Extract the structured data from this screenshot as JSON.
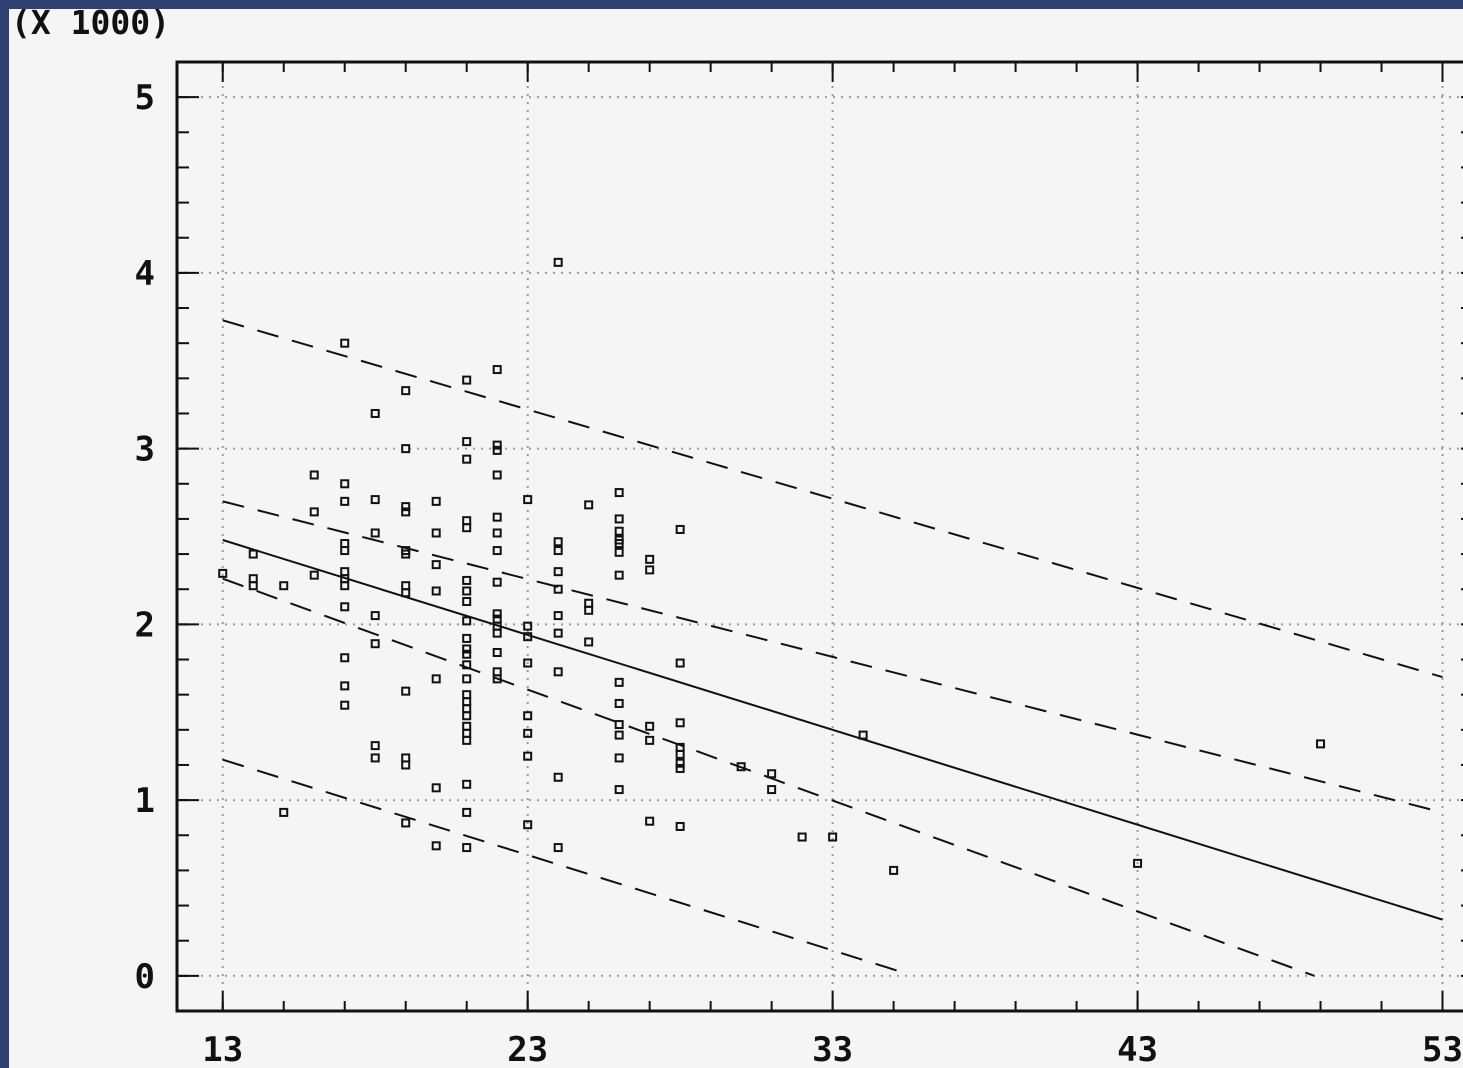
{
  "colors": {
    "background_frame": "#2e3f72",
    "plot_background": "#f5f5f5",
    "ink": "#111111",
    "grid": "#9a9a9a"
  },
  "chart_data": {
    "type": "scatter",
    "title": "",
    "xlabel": "",
    "ylabel": "",
    "y_multiplier_label": "(X 1000)",
    "xlim": [
      11.5,
      54
    ],
    "ylim": [
      -0.2,
      5.2
    ],
    "x_ticks": [
      13,
      23,
      33,
      43,
      53
    ],
    "y_ticks": [
      0,
      1,
      2,
      3,
      4,
      5
    ],
    "grid": true,
    "grid_style": "dotted",
    "points": [
      [
        13,
        2.29
      ],
      [
        14,
        2.4
      ],
      [
        14,
        2.26
      ],
      [
        14,
        2.22
      ],
      [
        15,
        2.22
      ],
      [
        15,
        0.93
      ],
      [
        16,
        2.85
      ],
      [
        16,
        2.64
      ],
      [
        16,
        2.28
      ],
      [
        17,
        3.6
      ],
      [
        17,
        2.8
      ],
      [
        17,
        2.7
      ],
      [
        17,
        2.46
      ],
      [
        17,
        2.42
      ],
      [
        17,
        2.3
      ],
      [
        17,
        2.26
      ],
      [
        17,
        2.22
      ],
      [
        17,
        2.1
      ],
      [
        17,
        1.81
      ],
      [
        17,
        1.65
      ],
      [
        17,
        1.54
      ],
      [
        18,
        3.2
      ],
      [
        18,
        2.71
      ],
      [
        18,
        2.52
      ],
      [
        18,
        2.05
      ],
      [
        18,
        1.89
      ],
      [
        18,
        1.31
      ],
      [
        18,
        1.24
      ],
      [
        19,
        3.33
      ],
      [
        19,
        3.0
      ],
      [
        19,
        2.67
      ],
      [
        19,
        2.64
      ],
      [
        19,
        2.42
      ],
      [
        19,
        2.4
      ],
      [
        19,
        2.22
      ],
      [
        19,
        2.18
      ],
      [
        19,
        1.62
      ],
      [
        19,
        1.24
      ],
      [
        19,
        1.2
      ],
      [
        19,
        0.87
      ],
      [
        20,
        2.7
      ],
      [
        20,
        2.52
      ],
      [
        20,
        2.34
      ],
      [
        20,
        2.19
      ],
      [
        20,
        1.69
      ],
      [
        20,
        1.07
      ],
      [
        20,
        0.74
      ],
      [
        21,
        3.39
      ],
      [
        21,
        3.04
      ],
      [
        21,
        2.94
      ],
      [
        21,
        2.59
      ],
      [
        21,
        2.55
      ],
      [
        21,
        2.25
      ],
      [
        21,
        2.19
      ],
      [
        21,
        2.13
      ],
      [
        21,
        2.02
      ],
      [
        21,
        1.92
      ],
      [
        21,
        1.86
      ],
      [
        21,
        1.83
      ],
      [
        21,
        1.77
      ],
      [
        21,
        1.69
      ],
      [
        21,
        1.6
      ],
      [
        21,
        1.56
      ],
      [
        21,
        1.52
      ],
      [
        21,
        1.48
      ],
      [
        21,
        1.42
      ],
      [
        21,
        1.38
      ],
      [
        21,
        1.34
      ],
      [
        21,
        1.09
      ],
      [
        21,
        0.93
      ],
      [
        21,
        0.73
      ],
      [
        22,
        3.45
      ],
      [
        22,
        3.02
      ],
      [
        22,
        2.99
      ],
      [
        22,
        2.85
      ],
      [
        22,
        2.61
      ],
      [
        22,
        2.52
      ],
      [
        22,
        2.42
      ],
      [
        22,
        2.24
      ],
      [
        22,
        2.06
      ],
      [
        22,
        2.03
      ],
      [
        22,
        1.99
      ],
      [
        22,
        1.95
      ],
      [
        22,
        1.84
      ],
      [
        22,
        1.73
      ],
      [
        22,
        1.69
      ],
      [
        23,
        2.71
      ],
      [
        23,
        1.99
      ],
      [
        23,
        1.93
      ],
      [
        23,
        1.78
      ],
      [
        23,
        1.48
      ],
      [
        23,
        1.38
      ],
      [
        23,
        1.25
      ],
      [
        23,
        0.86
      ],
      [
        24,
        4.06
      ],
      [
        24,
        2.47
      ],
      [
        24,
        2.42
      ],
      [
        24,
        2.3
      ],
      [
        24,
        2.2
      ],
      [
        24,
        2.05
      ],
      [
        24,
        1.95
      ],
      [
        24,
        1.73
      ],
      [
        24,
        1.13
      ],
      [
        24,
        0.73
      ],
      [
        25,
        2.68
      ],
      [
        25,
        2.12
      ],
      [
        25,
        2.08
      ],
      [
        25,
        1.9
      ],
      [
        26,
        2.75
      ],
      [
        26,
        2.6
      ],
      [
        26,
        2.53
      ],
      [
        26,
        2.48
      ],
      [
        26,
        2.46
      ],
      [
        26,
        2.41
      ],
      [
        26,
        2.28
      ],
      [
        26,
        1.67
      ],
      [
        26,
        1.55
      ],
      [
        26,
        1.43
      ],
      [
        26,
        1.37
      ],
      [
        26,
        1.24
      ],
      [
        26,
        1.06
      ],
      [
        27,
        2.37
      ],
      [
        27,
        2.31
      ],
      [
        27,
        1.42
      ],
      [
        27,
        1.34
      ],
      [
        27,
        0.88
      ],
      [
        28,
        2.54
      ],
      [
        28,
        1.78
      ],
      [
        28,
        1.44
      ],
      [
        28,
        1.3
      ],
      [
        28,
        1.26
      ],
      [
        28,
        1.21
      ],
      [
        28,
        1.18
      ],
      [
        28,
        0.85
      ],
      [
        30,
        1.19
      ],
      [
        31,
        1.15
      ],
      [
        31,
        1.06
      ],
      [
        32,
        0.79
      ],
      [
        33,
        0.79
      ],
      [
        34,
        1.37
      ],
      [
        35,
        0.6
      ],
      [
        43,
        0.64
      ],
      [
        49,
        1.32
      ]
    ],
    "fit_line": [
      [
        13,
        2.48
      ],
      [
        53,
        0.32
      ]
    ],
    "confidence_band": {
      "upper": [
        [
          13,
          2.7
        ],
        [
          53,
          0.93
        ]
      ],
      "lower": [
        [
          13,
          2.26
        ],
        [
          48.8,
          0.0
        ]
      ]
    },
    "prediction_band": {
      "upper": [
        [
          13,
          3.73
        ],
        [
          53,
          1.7
        ]
      ],
      "lower": [
        [
          13,
          1.23
        ],
        [
          35.3,
          0.02
        ]
      ]
    }
  }
}
